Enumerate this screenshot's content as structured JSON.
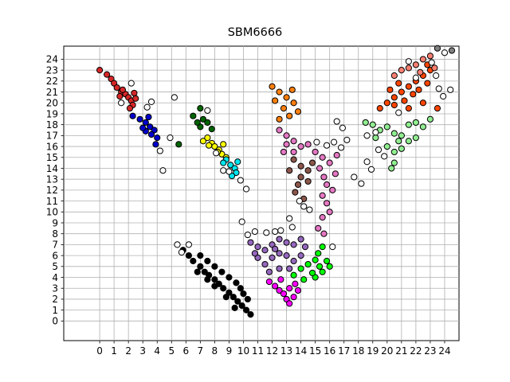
{
  "chart_data": {
    "type": "scatter",
    "title": "SBM6666",
    "xlabel": "",
    "ylabel": "",
    "xlim": [
      -2.5,
      25
    ],
    "ylim": [
      -1.8,
      25.2
    ],
    "x_ticks": [
      "0",
      "1",
      "2",
      "3",
      "4",
      "5",
      "6",
      "7",
      "8",
      "9",
      "10",
      "11",
      "12",
      "13",
      "14",
      "15",
      "16",
      "17",
      "18",
      "19",
      "20",
      "21",
      "22",
      "23",
      "24"
    ],
    "y_ticks": [
      "0",
      "1",
      "2",
      "3",
      "4",
      "5",
      "6",
      "7",
      "8",
      "9",
      "10",
      "11",
      "12",
      "13",
      "14",
      "15",
      "16",
      "17",
      "18",
      "19",
      "20",
      "21",
      "22",
      "23",
      "24"
    ],
    "grid": true,
    "legend": "none",
    "clusters": [
      {
        "color": "#d62728",
        "points": [
          [
            0,
            23
          ],
          [
            0.5,
            22.6
          ],
          [
            0.8,
            22.2
          ],
          [
            1,
            21.8
          ],
          [
            1.2,
            21.4
          ],
          [
            1.5,
            21
          ],
          [
            1.8,
            20.8
          ],
          [
            2,
            20.5
          ],
          [
            2.2,
            20.2
          ],
          [
            1.4,
            20.6
          ],
          [
            2.5,
            20.4
          ],
          [
            2.3,
            19.8
          ],
          [
            2.1,
            19.5
          ],
          [
            1.6,
            21.2
          ],
          [
            2.4,
            20.9
          ]
        ]
      },
      {
        "color": "#0000cc",
        "points": [
          [
            2.3,
            18.8
          ],
          [
            2.8,
            18.5
          ],
          [
            3.2,
            18.2
          ],
          [
            3.5,
            17.8
          ],
          [
            3.8,
            17.5
          ],
          [
            3.2,
            17.4
          ],
          [
            3.6,
            17.1
          ],
          [
            4,
            16.8
          ],
          [
            3.9,
            16.2
          ],
          [
            3.4,
            18.7
          ],
          [
            3.0,
            17.7
          ]
        ]
      },
      {
        "color": "#006400",
        "points": [
          [
            5.5,
            16.2
          ],
          [
            6.5,
            18.8
          ],
          [
            7,
            19.5
          ],
          [
            7.2,
            18.5
          ],
          [
            7,
            17.8
          ],
          [
            7.5,
            18.2
          ],
          [
            7.8,
            17.6
          ],
          [
            6.8,
            18.2
          ]
        ]
      },
      {
        "color": "#ffff00",
        "points": [
          [
            7.2,
            16.5
          ],
          [
            7.5,
            16.8
          ],
          [
            7.8,
            16.3
          ],
          [
            8,
            16
          ],
          [
            8.3,
            15.7
          ],
          [
            8.5,
            15.3
          ],
          [
            8.8,
            15
          ],
          [
            8.2,
            15.5
          ],
          [
            7.6,
            16.1
          ],
          [
            8.6,
            16.2
          ]
        ]
      },
      {
        "color": "#00e5ee",
        "points": [
          [
            8.8,
            14.8
          ],
          [
            9.1,
            14.3
          ],
          [
            9.4,
            14
          ],
          [
            9.5,
            13.6
          ],
          [
            9.2,
            13.3
          ],
          [
            9.6,
            14.6
          ],
          [
            8.6,
            14.5
          ]
        ]
      },
      {
        "color": "#000000",
        "points": [
          [
            5.8,
            6.5
          ],
          [
            6.2,
            6
          ],
          [
            6.5,
            5.5
          ],
          [
            7,
            5
          ],
          [
            7.3,
            4.5
          ],
          [
            7.6,
            4.2
          ],
          [
            8,
            3.8
          ],
          [
            8.3,
            3.4
          ],
          [
            8.6,
            3
          ],
          [
            9,
            2.6
          ],
          [
            9.3,
            2.2
          ],
          [
            9.6,
            1.8
          ],
          [
            9.9,
            1.4
          ],
          [
            10.2,
            1
          ],
          [
            10.5,
            0.6
          ],
          [
            7,
            6
          ],
          [
            7.5,
            5.5
          ],
          [
            8,
            5
          ],
          [
            8.5,
            4.5
          ],
          [
            9,
            4
          ],
          [
            9.5,
            3.5
          ],
          [
            9.8,
            3
          ],
          [
            10,
            2.5
          ],
          [
            10.3,
            2
          ],
          [
            6.8,
            4.5
          ],
          [
            7.5,
            3.8
          ],
          [
            8,
            3.2
          ],
          [
            8.8,
            2.2
          ],
          [
            9.4,
            1.2
          ]
        ]
      },
      {
        "color": "#9467bd",
        "points": [
          [
            10.5,
            7.2
          ],
          [
            11,
            6.8
          ],
          [
            11.5,
            6.5
          ],
          [
            12,
            7
          ],
          [
            12.5,
            7.5
          ],
          [
            13,
            7.2
          ],
          [
            13.5,
            7
          ],
          [
            14,
            7.5
          ],
          [
            14.3,
            6.8
          ],
          [
            11,
            5.8
          ],
          [
            11.5,
            5.2
          ],
          [
            12,
            5.8
          ],
          [
            12.5,
            6.2
          ],
          [
            13,
            6
          ],
          [
            13.5,
            5.5
          ],
          [
            14,
            6
          ],
          [
            11.8,
            4.5
          ],
          [
            12.5,
            4.8
          ],
          [
            13.2,
            4.8
          ],
          [
            10.8,
            6.2
          ],
          [
            12.2,
            6.6
          ]
        ]
      },
      {
        "color": "#ff00ff",
        "points": [
          [
            11.8,
            3.6
          ],
          [
            12.2,
            3.2
          ],
          [
            12.5,
            2.8
          ],
          [
            12.8,
            2.5
          ],
          [
            13,
            2
          ],
          [
            13.2,
            1.6
          ],
          [
            13.5,
            2.2
          ],
          [
            13.8,
            2.8
          ],
          [
            13.6,
            3.4
          ],
          [
            12.6,
            3.8
          ],
          [
            13.2,
            3.0
          ]
        ]
      },
      {
        "color": "#00ff00",
        "points": [
          [
            13.5,
            4.2
          ],
          [
            14,
            4.8
          ],
          [
            14.5,
            5.2
          ],
          [
            15,
            5.6
          ],
          [
            15.2,
            6.2
          ],
          [
            15.5,
            6.8
          ],
          [
            15.8,
            5.5
          ],
          [
            16,
            5
          ],
          [
            15.5,
            4.5
          ],
          [
            15,
            4
          ],
          [
            14.2,
            3.8
          ],
          [
            14.8,
            4.4
          ],
          [
            15.3,
            5.0
          ]
        ]
      },
      {
        "color": "#ff7f0e",
        "points": [
          [
            12,
            21.5
          ],
          [
            12.5,
            21
          ],
          [
            13,
            20.5
          ],
          [
            13.5,
            20
          ],
          [
            12.8,
            19.5
          ],
          [
            13.2,
            18.8
          ],
          [
            12.5,
            18.5
          ],
          [
            13.8,
            19.2
          ],
          [
            12.2,
            20.2
          ],
          [
            13.4,
            21.2
          ]
        ]
      },
      {
        "color": "#e377c2",
        "points": [
          [
            12.5,
            17.5
          ],
          [
            13,
            17
          ],
          [
            13.5,
            16.5
          ],
          [
            14,
            16
          ],
          [
            13,
            16.2
          ],
          [
            13.5,
            15.5
          ],
          [
            14.5,
            16.2
          ],
          [
            12.8,
            15.5
          ],
          [
            15,
            15.5
          ],
          [
            15.5,
            15
          ],
          [
            16,
            14.5
          ],
          [
            15.3,
            14
          ],
          [
            15.6,
            13.2
          ],
          [
            15.8,
            12.5
          ],
          [
            16.2,
            12
          ],
          [
            15.5,
            11.5
          ],
          [
            15.8,
            10.8
          ],
          [
            16,
            10
          ],
          [
            15.5,
            9.5
          ],
          [
            15.2,
            8.5
          ],
          [
            15.6,
            8
          ],
          [
            16.5,
            15.2
          ],
          [
            16.4,
            13.5
          ]
        ]
      },
      {
        "color": "#8c564b",
        "points": [
          [
            13.5,
            14.8
          ],
          [
            14,
            14.2
          ],
          [
            14.5,
            13.8
          ],
          [
            14,
            13.2
          ],
          [
            13.8,
            12.5
          ],
          [
            14.5,
            12.8
          ],
          [
            13.6,
            11.8
          ],
          [
            14.2,
            11.2
          ],
          [
            14.8,
            14.5
          ],
          [
            13.2,
            13.8
          ]
        ]
      },
      {
        "color": "#ff4500",
        "points": [
          [
            19.5,
            19.5
          ],
          [
            20,
            20
          ],
          [
            20.5,
            20.5
          ],
          [
            21,
            21
          ],
          [
            21.5,
            21.5
          ],
          [
            22,
            22
          ],
          [
            22.5,
            22.5
          ],
          [
            23,
            23
          ],
          [
            20.2,
            21.2
          ],
          [
            20.8,
            21.8
          ],
          [
            21.2,
            20.2
          ],
          [
            21.8,
            20.8
          ],
          [
            22.2,
            21.2
          ],
          [
            22.8,
            21.8
          ],
          [
            21.5,
            19.5
          ],
          [
            22.5,
            20
          ],
          [
            23.5,
            19.5
          ],
          [
            22.8,
            23.5
          ],
          [
            20.5,
            19.8
          ]
        ]
      },
      {
        "color": "#fa8072",
        "points": [
          [
            20.5,
            22.5
          ],
          [
            21,
            23
          ],
          [
            21.5,
            23.2
          ],
          [
            22,
            23.5
          ],
          [
            22.5,
            24
          ],
          [
            23,
            24.3
          ],
          [
            23.3,
            23.2
          ],
          [
            22.3,
            22.8
          ]
        ]
      },
      {
        "color": "#90ee90",
        "points": [
          [
            18.5,
            18.2
          ],
          [
            19,
            18
          ],
          [
            19.5,
            17.5
          ],
          [
            20,
            17.8
          ],
          [
            20.5,
            17.2
          ],
          [
            21,
            17
          ],
          [
            21.5,
            16.5
          ],
          [
            22,
            16.8
          ],
          [
            20,
            16
          ],
          [
            20.5,
            15.5
          ],
          [
            21,
            15.8
          ],
          [
            20.5,
            14.5
          ],
          [
            21.5,
            18
          ],
          [
            22,
            18.2
          ],
          [
            22.5,
            17.8
          ],
          [
            23,
            18.5
          ],
          [
            19.2,
            16.8
          ],
          [
            20.8,
            16.5
          ],
          [
            20.3,
            14.0
          ]
        ]
      },
      {
        "color": "#808080",
        "points": [
          [
            23.5,
            25
          ],
          [
            24.5,
            24.8
          ]
        ]
      },
      {
        "color": "#ffffff",
        "points": [
          [
            1.5,
            20
          ],
          [
            2.2,
            21.8
          ],
          [
            3.3,
            19.6
          ],
          [
            3.6,
            20.1
          ],
          [
            4.2,
            15.6
          ],
          [
            4.4,
            13.8
          ],
          [
            4.9,
            16.8
          ],
          [
            5.2,
            20.5
          ],
          [
            5.4,
            7
          ],
          [
            5.7,
            6.3
          ],
          [
            6.2,
            7
          ],
          [
            7.5,
            19.3
          ],
          [
            8.1,
            15.4
          ],
          [
            8.6,
            13.8
          ],
          [
            9,
            13.7
          ],
          [
            9.8,
            12.9
          ],
          [
            10.2,
            12.1
          ],
          [
            9.9,
            9.1
          ],
          [
            10.3,
            7.9
          ],
          [
            10.8,
            8.2
          ],
          [
            11.6,
            8.1
          ],
          [
            12.2,
            8.2
          ],
          [
            12.6,
            8.3
          ],
          [
            13.2,
            9.4
          ],
          [
            13.4,
            8.6
          ],
          [
            13.9,
            11
          ],
          [
            14.2,
            10.5
          ],
          [
            14.6,
            10.2
          ],
          [
            15.1,
            16.4
          ],
          [
            15.8,
            16.1
          ],
          [
            16.3,
            16.4
          ],
          [
            16.5,
            18.3
          ],
          [
            16.8,
            15.9
          ],
          [
            16.9,
            17.7
          ],
          [
            17.2,
            16.6
          ],
          [
            16.2,
            6.8
          ],
          [
            17.7,
            13.2
          ],
          [
            18.2,
            12.6
          ],
          [
            18.6,
            14.6
          ],
          [
            18.9,
            13.9
          ],
          [
            19.2,
            17.3
          ],
          [
            19.4,
            15.7
          ],
          [
            19.8,
            15.1
          ],
          [
            20.8,
            19.1
          ],
          [
            21.5,
            23.8
          ],
          [
            23.1,
            23.7
          ],
          [
            23.4,
            22.5
          ],
          [
            23.6,
            21.3
          ],
          [
            23.9,
            20.6
          ],
          [
            24.4,
            21.2
          ],
          [
            24,
            24.6
          ],
          [
            22,
            22.3
          ],
          [
            18.6,
            17.0
          ]
        ]
      }
    ]
  }
}
